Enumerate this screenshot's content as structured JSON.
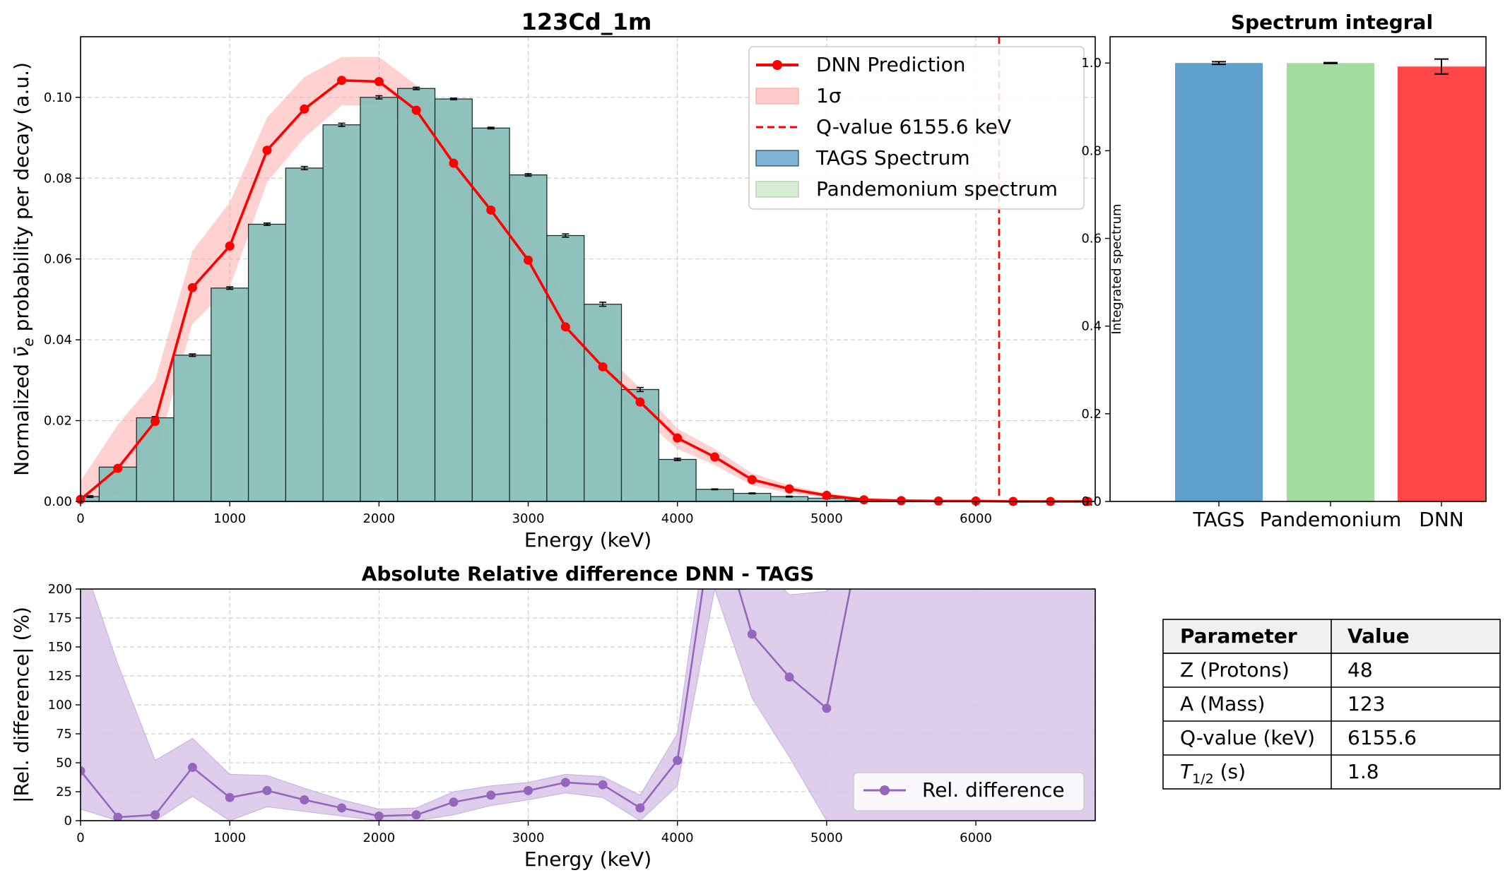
{
  "figure_title": "123Cd_1m",
  "colors": {
    "dnn": "#ff0000",
    "band": "#ffb3b3",
    "tags_bar": "#7fb3d5",
    "pand_bar": "#c7e9c0",
    "overlap_bar": "#8abfba",
    "qline": "#ff0000",
    "rel": "#9467bd",
    "rel_band": "#d9c6e8",
    "integral_tags": "#5f9fcc",
    "integral_pand": "#a3dba0",
    "integral_dnn": "#ff4747"
  },
  "chart_data": [
    {
      "type": "bar",
      "title": "",
      "xlabel": "Energy (keV)",
      "ylabel_parts": [
        "Normalized ",
        "ν̄",
        "e",
        " probability per decay (a.u.)"
      ],
      "xlim": [
        0,
        6800
      ],
      "ylim": [
        0,
        0.115
      ],
      "grid": true,
      "legend_position": "top-right",
      "x_ticks": [
        0,
        1000,
        2000,
        3000,
        4000,
        5000,
        6000
      ],
      "y_ticks": [
        0.0,
        0.02,
        0.04,
        0.06,
        0.08,
        0.1
      ],
      "y_tick_labels": [
        "0.00",
        "0.02",
        "0.04",
        "0.06",
        "0.08",
        "0.10"
      ],
      "legend": [
        {
          "label": "DNN Prediction",
          "kind": "line-marker"
        },
        {
          "label": "1σ",
          "kind": "patch-band"
        },
        {
          "label": "Q-value 6155.6 keV",
          "kind": "dashed"
        },
        {
          "label": "TAGS Spectrum",
          "kind": "patch-tags"
        },
        {
          "label": "Pandemonium spectrum",
          "kind": "patch-pand"
        }
      ],
      "bins_edges": [
        0,
        125,
        375,
        625,
        875,
        1125,
        1375,
        1625,
        1875,
        2125,
        2375,
        2625,
        2875,
        3125,
        3375,
        3625,
        3875,
        4125,
        4375,
        4625,
        4875,
        5125,
        5375,
        5625,
        5875,
        6125
      ],
      "tags_values": [
        0.0012,
        0.0085,
        0.0207,
        0.0362,
        0.0528,
        0.0686,
        0.0825,
        0.0932,
        0.1,
        0.1022,
        0.0996,
        0.0924,
        0.0808,
        0.0658,
        0.0488,
        0.0277,
        0.0104,
        0.003,
        0.002,
        0.0012,
        0.0008,
        0.0003,
        0.0002,
        0.0001,
        0.0001
      ],
      "tags_errors": [
        0.0002,
        0.0003,
        0.0003,
        0.0003,
        0.0003,
        0.0003,
        0.0004,
        0.0004,
        0.0004,
        0.0003,
        0.0002,
        0.0002,
        0.0003,
        0.0004,
        0.0005,
        0.0005,
        0.0003,
        0.0001,
        0.0001,
        0.0001,
        0.0001,
        0.0001,
        0.0,
        0.0,
        0.0
      ],
      "dnn_x": [
        0,
        250,
        500,
        750,
        1000,
        1250,
        1500,
        1750,
        2000,
        2250,
        2500,
        2750,
        3000,
        3250,
        3500,
        3750,
        4000,
        4250,
        4500,
        4750,
        5000,
        5250,
        5500,
        5750,
        6000,
        6250,
        6500,
        6750
      ],
      "dnn_y": [
        0.0005,
        0.0082,
        0.0198,
        0.0529,
        0.0632,
        0.0869,
        0.0971,
        0.1042,
        0.1039,
        0.0968,
        0.0837,
        0.0721,
        0.0597,
        0.0432,
        0.0333,
        0.0246,
        0.0157,
        0.011,
        0.0054,
        0.0031,
        0.0015,
        0.0004,
        0.0002,
        0.0001,
        0.0001,
        0.0,
        0.0,
        0.0
      ],
      "dnn_lo": [
        0.0,
        0.002,
        0.011,
        0.044,
        0.053,
        0.079,
        0.09,
        0.098,
        0.098,
        0.09,
        0.076,
        0.064,
        0.052,
        0.037,
        0.029,
        0.021,
        0.013,
        0.009,
        0.004,
        0.002,
        0.001,
        0.0,
        0.0,
        0.0,
        0.0,
        0.0,
        0.0,
        0.0
      ],
      "dnn_hi": [
        0.005,
        0.019,
        0.03,
        0.062,
        0.074,
        0.095,
        0.105,
        0.11,
        0.11,
        0.103,
        0.091,
        0.08,
        0.067,
        0.049,
        0.037,
        0.028,
        0.018,
        0.013,
        0.007,
        0.004,
        0.002,
        0.001,
        0.0005,
        0.0002,
        0.0001,
        0.0,
        0.0,
        0.0
      ],
      "q_value": 6155.6
    },
    {
      "type": "bar",
      "title": "Spectrum integral",
      "xlabel": "",
      "ylabel": "Integrated spectrum",
      "ylim": [
        0,
        1.06
      ],
      "y_ticks": [
        0.0,
        0.2,
        0.4,
        0.6,
        0.8,
        1.0
      ],
      "y_tick_labels": [
        "0.0",
        "0.2",
        "0.4",
        "0.6",
        "0.8",
        "1.0"
      ],
      "categories": [
        "TAGS",
        "Pandemonium",
        "DNN"
      ],
      "values": [
        1.0,
        1.0,
        0.992
      ],
      "errors": [
        0.003,
        0.001,
        0.017
      ]
    },
    {
      "type": "line",
      "title": "Absolute Relative difference DNN - TAGS",
      "xlabel": "Energy (keV)",
      "ylabel": "|Rel. difference| (%)",
      "xlim": [
        0,
        6800
      ],
      "ylim": [
        0,
        200
      ],
      "grid": true,
      "legend_position": "bottom-right",
      "x_ticks": [
        0,
        1000,
        2000,
        3000,
        4000,
        5000,
        6000
      ],
      "y_ticks": [
        0,
        25,
        50,
        75,
        100,
        125,
        150,
        175,
        200
      ],
      "legend": [
        {
          "label": "Rel. difference"
        }
      ],
      "x": [
        0,
        250,
        500,
        750,
        1000,
        1250,
        1500,
        1750,
        2000,
        2250,
        2500,
        2750,
        3000,
        3250,
        3500,
        3750,
        4000,
        4250,
        4500,
        4750,
        5000,
        5250
      ],
      "y": [
        43,
        3,
        5,
        46,
        20,
        26,
        18,
        11,
        4,
        5,
        16,
        22,
        26,
        33,
        31,
        11,
        52,
        270,
        161,
        124,
        97,
        260
      ],
      "band_lo": [
        10,
        0,
        0,
        21,
        0,
        12,
        8,
        4,
        0,
        0,
        5,
        13,
        18,
        24,
        20,
        0,
        30,
        200,
        106,
        55,
        0,
        0
      ],
      "band_hi": [
        230,
        135,
        52,
        71,
        40,
        39,
        28,
        18,
        10,
        11,
        25,
        30,
        33,
        40,
        38,
        22,
        75,
        300,
        230,
        195,
        198,
        300
      ]
    }
  ],
  "table": {
    "header": [
      "Parameter",
      "Value"
    ],
    "rows": [
      {
        "param": "Z (Protons)",
        "value": "48"
      },
      {
        "param": "A (Mass)",
        "value": "123"
      },
      {
        "param": "Q-value (keV)",
        "value": "6155.6"
      },
      {
        "param_main": "T",
        "param_sub": "1/2",
        "param_rest": " (s)",
        "value": "1.8"
      }
    ]
  }
}
